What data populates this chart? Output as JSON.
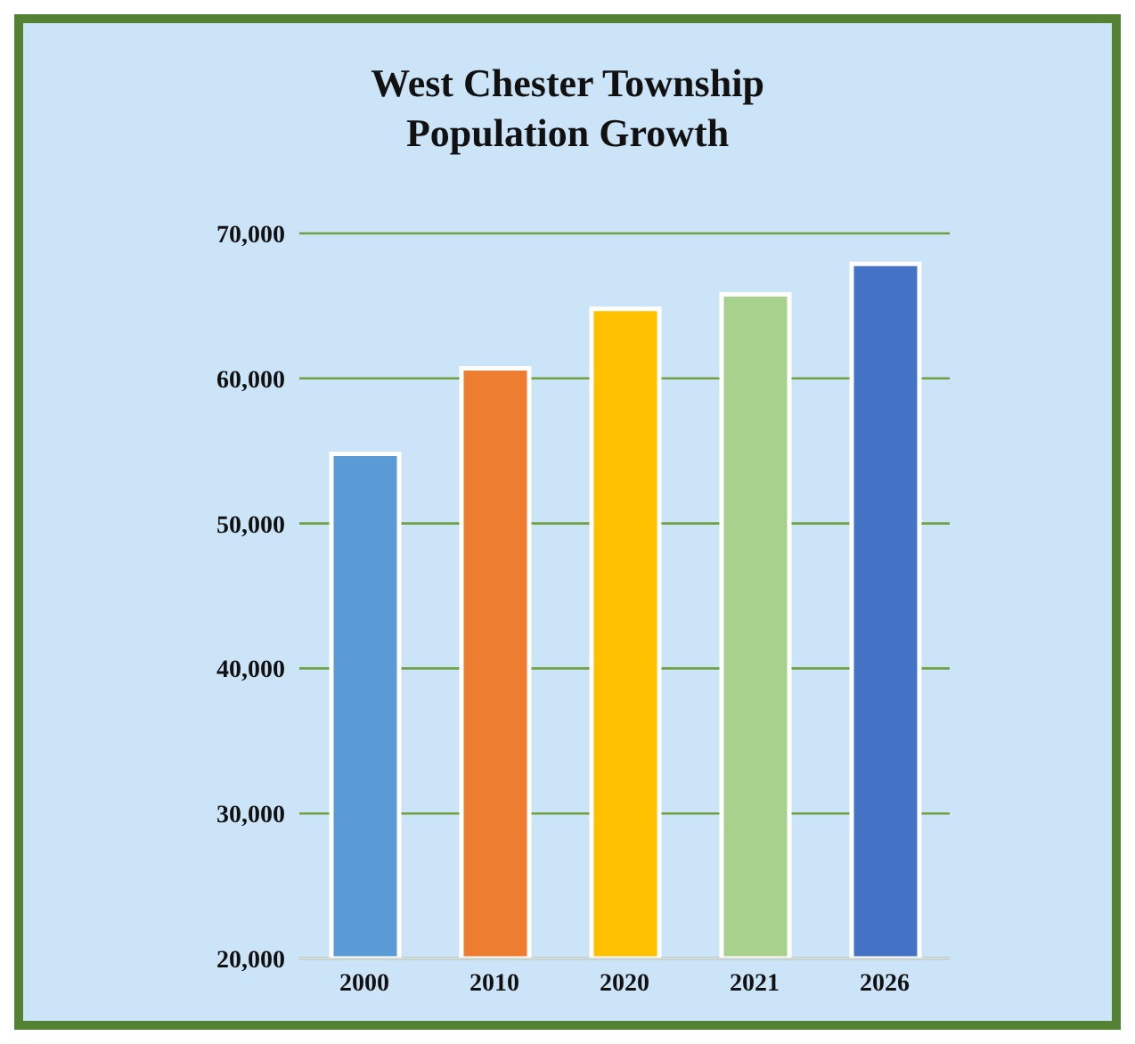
{
  "chart_data": {
    "type": "bar",
    "title": "West Chester Township\nPopulation Growth",
    "categories": [
      "2000",
      "2010",
      "2020",
      "2021",
      "2026"
    ],
    "values": [
      54800,
      60700,
      64800,
      65800,
      67900
    ],
    "colors": [
      "#5b9bd5",
      "#ed7d31",
      "#ffc000",
      "#a9d18e",
      "#4472c4"
    ],
    "ylim": [
      20000,
      70000
    ],
    "yticks": [
      {
        "value": 20000,
        "label": "20,000"
      },
      {
        "value": 30000,
        "label": "30,000"
      },
      {
        "value": 40000,
        "label": "40,000"
      },
      {
        "value": 50000,
        "label": "50,000"
      },
      {
        "value": 60000,
        "label": "60,000"
      },
      {
        "value": 70000,
        "label": "70,000"
      }
    ],
    "grid": "y",
    "legend": false
  }
}
